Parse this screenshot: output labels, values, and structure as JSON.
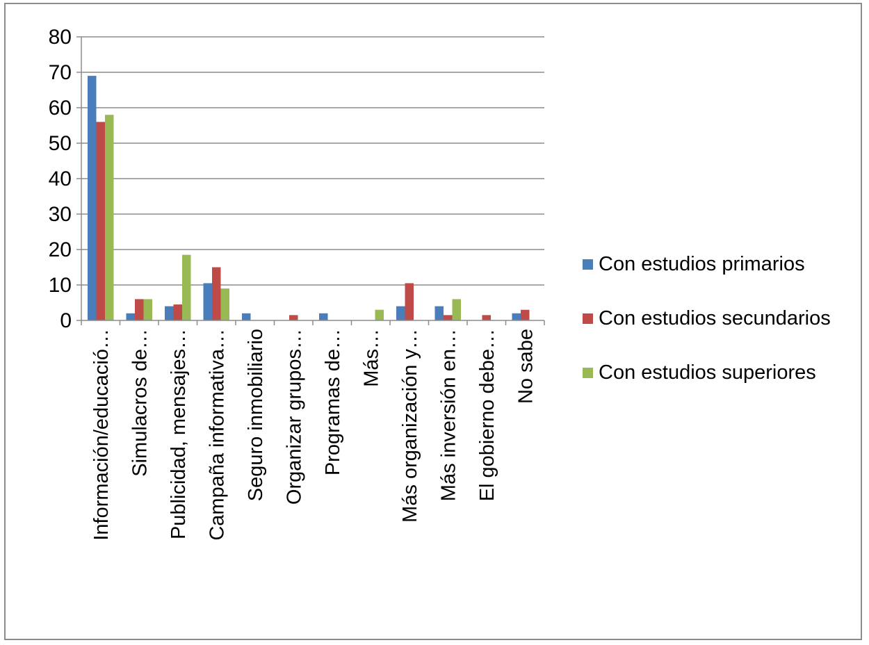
{
  "chart_data": {
    "type": "bar",
    "title": "",
    "xlabel": "",
    "ylabel": "",
    "ylim": [
      0,
      80
    ],
    "yticks": [
      0,
      10,
      20,
      30,
      40,
      50,
      60,
      70,
      80
    ],
    "grid": true,
    "legend_position": "right",
    "categories": [
      "Información/educació…",
      "Simulacros de…",
      "Publicidad, mensajes…",
      "Campaña informativa…",
      "Seguro inmobiliario",
      "Organizar grupos…",
      "Programas de…",
      "Más…",
      "Más organización y…",
      "Más inversión en…",
      "El gobierno debe…",
      "No sabe"
    ],
    "series": [
      {
        "name": "Con estudios primarios",
        "color": "#4a7ebb",
        "values": [
          69,
          2,
          4,
          10.5,
          2,
          0,
          2,
          0,
          4,
          4,
          0,
          2
        ]
      },
      {
        "name": "Con estudios secundarios",
        "color": "#be4b48",
        "values": [
          56,
          6,
          4.5,
          15,
          0,
          1.5,
          0,
          0,
          10.5,
          1.5,
          1.5,
          3
        ]
      },
      {
        "name": "Con estudios superiores",
        "color": "#98b954",
        "values": [
          58,
          6,
          18.5,
          9,
          0,
          0,
          0,
          3,
          0,
          6,
          0,
          0
        ]
      }
    ]
  }
}
